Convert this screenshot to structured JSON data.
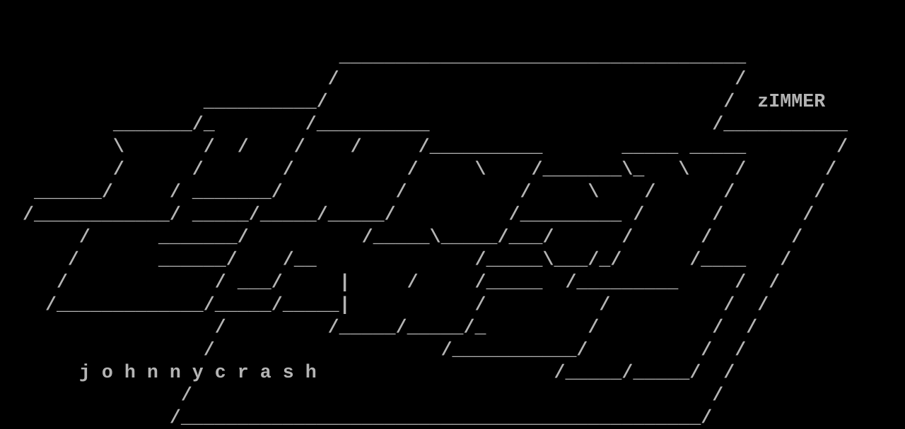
{
  "page": {
    "background": "#000000",
    "foreground": "#b4b4b4"
  },
  "labels": {
    "logo_text": "zIMMER",
    "artist_signature": "johnnycrash"
  },
  "art": {
    "lines": [
      "",
      "",
      "                              ____________________________________",
      "                             /                                   /",
      "                  __________/                                   /  zIMMER",
      "          _______/_        /__________                         /___________",
      "          \\       /  /    /    /     /__________       _____ _____        /",
      "          /      /       /          /     \\    /_______\\_   \\    /       /",
      "   ______/     / _______/          /          /     \\    /      /       /",
      "  /____________/ _____/_____/_____/          /_________ /      /       /",
      "       /      _______/          /_____\\_____/___/      /      /       /",
      "      /       ______/    /__              /_____\\___/_/      /____   /",
      "     /             / ___/     |     /     /_____  /_________     /  /",
      "    /_____________/_____/_____|           /          /          /  /",
      "                   /         /_____/_____/_         /          /  /",
      "                  /                    /___________/          /  /",
      "       j o h n n y c r a s h                     /_____/_____/  /",
      "                /                                              /",
      "               /______________________________________________/"
    ]
  }
}
